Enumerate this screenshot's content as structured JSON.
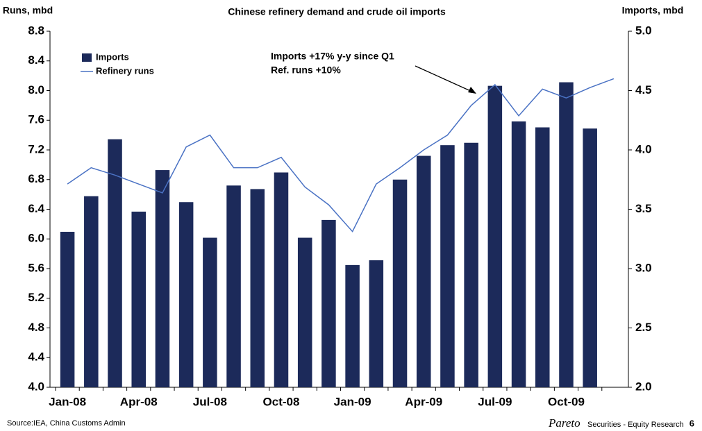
{
  "chart_data": {
    "type": "bar_line",
    "title": "Chinese refinery demand and crude oil imports",
    "y_label": "Runs, mbd",
    "y2_label": "Imports, mbd",
    "annotation": [
      "Imports +17% y-y since Q1",
      "Ref. runs +10%"
    ],
    "source": "Source:IEA, China Customs Admin",
    "brand": "Pareto",
    "brand_sub": "Securities - Equity Research",
    "page_number": "6",
    "categories": [
      "Jan-08",
      null,
      null,
      "Apr-08",
      null,
      null,
      "Jul-08",
      null,
      null,
      "Oct-08",
      null,
      null,
      "Jan-09",
      null,
      null,
      "Apr-09",
      null,
      null,
      "Jul-09",
      null,
      null,
      "Oct-09",
      null,
      null
    ],
    "series": [
      {
        "name": "Imports",
        "color": "#1c2a5a",
        "axis": "y2",
        "kind": "bar",
        "values": [
          3.31,
          3.61,
          4.09,
          3.48,
          3.83,
          3.56,
          3.26,
          3.7,
          3.67,
          3.81,
          3.26,
          3.41,
          3.03,
          3.07,
          3.75,
          3.95,
          4.04,
          4.06,
          4.54,
          4.24,
          4.19,
          4.57,
          4.18,
          null
        ]
      },
      {
        "name": "Refinery runs",
        "color": "#4a72c4",
        "axis": "y",
        "kind": "line",
        "values": [
          6.74,
          6.96,
          6.86,
          6.74,
          6.62,
          7.24,
          7.4,
          6.96,
          6.96,
          7.1,
          6.7,
          6.46,
          6.1,
          6.74,
          6.96,
          7.2,
          7.4,
          7.8,
          8.08,
          7.66,
          8.02,
          7.9,
          8.04,
          8.16
        ]
      }
    ],
    "ylim": [
      4.0,
      8.8
    ],
    "yticks": [
      {
        "value": 4.0,
        "label": "4.0"
      },
      4.4,
      4.8,
      5.2,
      5.6,
      {
        "value": 6.0,
        "label": "6.0"
      },
      6.4,
      6.8,
      7.2,
      7.6,
      {
        "value": 8.0,
        "label": "8.0"
      },
      8.4,
      8.8
    ],
    "y2lim": [
      2.0,
      5.0
    ],
    "y2ticks": [
      {
        "value": 2.0,
        "label": "2.0"
      },
      2.5,
      {
        "value": 3.0,
        "label": "3.0"
      },
      3.5,
      {
        "value": 4.0,
        "label": "4.0"
      },
      4.5,
      {
        "value": 5.0,
        "label": "5.0"
      }
    ],
    "grid": false,
    "legend": "top-left"
  }
}
